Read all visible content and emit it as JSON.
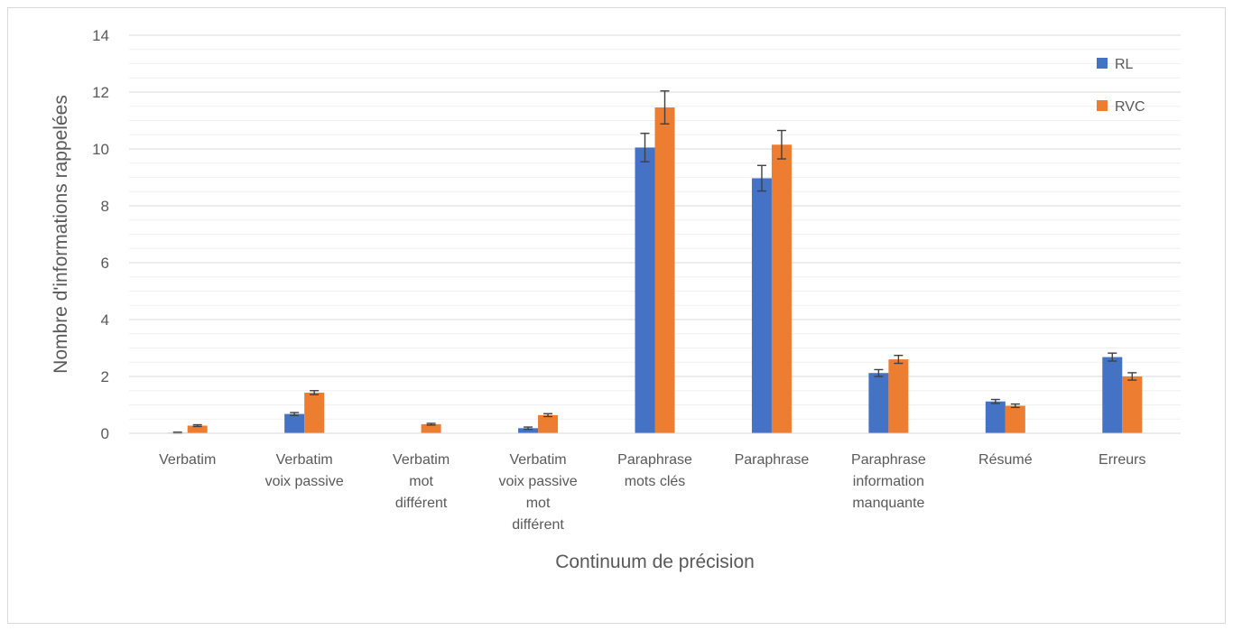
{
  "chart_data": {
    "type": "bar",
    "title": "",
    "xlabel": "Continuum de précision",
    "ylabel": "Nombre d'informations rappelées",
    "ylim": [
      0,
      14
    ],
    "yticks": [
      0,
      2,
      4,
      6,
      8,
      10,
      12,
      14
    ],
    "grid": true,
    "legend_position": "top-right",
    "categories": [
      [
        "Verbatim"
      ],
      [
        "Verbatim",
        "voix passive"
      ],
      [
        "Verbatim",
        "mot",
        "différent"
      ],
      [
        "Verbatim",
        "voix passive",
        "mot",
        "différent"
      ],
      [
        "Paraphrase",
        "mots clés"
      ],
      [
        "Paraphrase"
      ],
      [
        "Paraphrase",
        "information",
        "manquante"
      ],
      [
        "Résumé"
      ],
      [
        "Erreurs"
      ]
    ],
    "series": [
      {
        "name": "RL",
        "color": "#4472c4",
        "values": [
          0.02,
          0.68,
          0.0,
          0.18,
          10.05,
          8.97,
          2.12,
          1.12,
          2.68
        ],
        "errors": [
          0.02,
          0.05,
          0.0,
          0.04,
          0.5,
          0.45,
          0.12,
          0.07,
          0.14
        ]
      },
      {
        "name": "RVC",
        "color": "#ed7d31",
        "values": [
          0.27,
          1.43,
          0.32,
          0.64,
          11.46,
          10.15,
          2.6,
          0.97,
          2.0
        ],
        "errors": [
          0.03,
          0.07,
          0.03,
          0.05,
          0.58,
          0.5,
          0.14,
          0.06,
          0.13
        ]
      }
    ]
  }
}
